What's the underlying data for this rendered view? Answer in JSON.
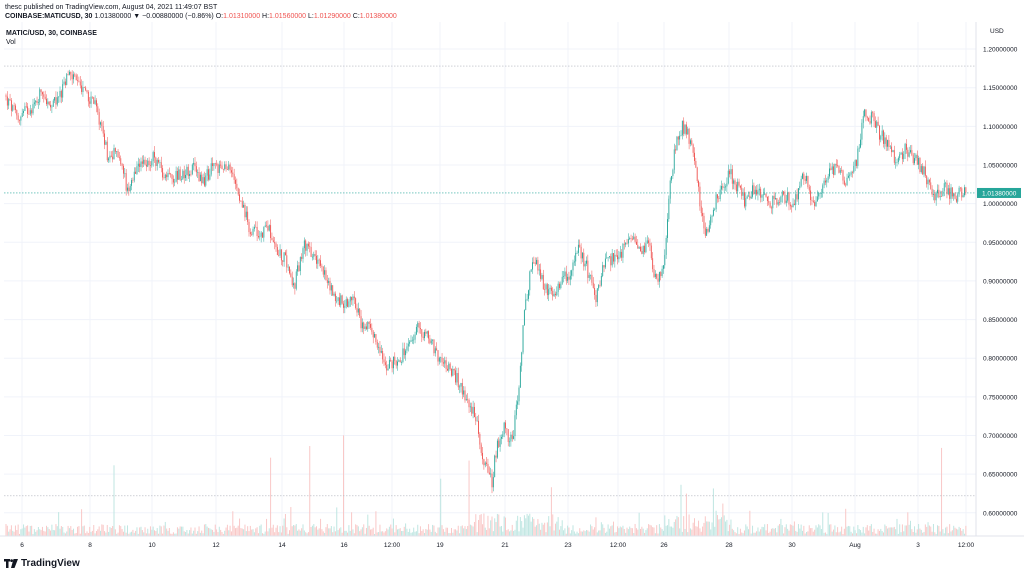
{
  "header": {
    "publisher_line": "thesc published on TradingView.com, August 04, 2021 11:49:07 BST",
    "symbol": "COINBASE:MATICUSD, 30",
    "change": "1.01380000 ▼ −0.00880000 (−0.86%)",
    "ohlc": [
      {
        "k": "O:",
        "v": "1.01310000"
      },
      {
        "k": "H:",
        "v": "1.01560000"
      },
      {
        "k": "L:",
        "v": "1.01290000"
      },
      {
        "k": "C:",
        "v": "1.01380000"
      }
    ]
  },
  "colors": {
    "up": "#26a69a",
    "down": "#ef5350",
    "vol_up": "#bfe6e2",
    "vol_down": "#f9c8c7",
    "grid": "#f0f3fa",
    "axis_text": "#131722",
    "last_price_bg": "#26a69a"
  },
  "chart_data": {
    "type": "candlestick",
    "pane_title": "MATIC/USD, 30, COINBASE",
    "volume_label": "Vol",
    "currency": "USD",
    "ylim": [
      0.57,
      1.235
    ],
    "y_ticks": [
      "1.20000000",
      "1.15000000",
      "1.10000000",
      "1.05000000",
      "1.00000000",
      "0.95000000",
      "0.90000000",
      "0.85000000",
      "0.80000000",
      "0.75000000",
      "0.70000000",
      "0.65000000",
      "0.60000000"
    ],
    "x_ticks": [
      "6",
      "8",
      "10",
      "12",
      "14",
      "16",
      "12:00",
      "19",
      "21",
      "23",
      "12:00",
      "26",
      "28",
      "30",
      "Aug",
      "3",
      "12:00"
    ],
    "range_high_line": 1.178,
    "range_low_line": 0.622,
    "last_price": 1.0138,
    "last_price_label": "1.01380000",
    "close_path": [
      [
        0,
        1.14
      ],
      [
        14,
        1.11
      ],
      [
        22,
        1.12
      ],
      [
        32,
        1.13
      ],
      [
        38,
        1.15
      ],
      [
        46,
        1.12
      ],
      [
        56,
        1.14
      ],
      [
        66,
        1.17
      ],
      [
        78,
        1.15
      ],
      [
        90,
        1.13
      ],
      [
        98,
        1.1
      ],
      [
        104,
        1.06
      ],
      [
        112,
        1.07
      ],
      [
        120,
        1.04
      ],
      [
        124,
        1.01
      ],
      [
        132,
        1.04
      ],
      [
        140,
        1.05
      ],
      [
        150,
        1.06
      ],
      [
        160,
        1.04
      ],
      [
        170,
        1.035
      ],
      [
        180,
        1.04
      ],
      [
        190,
        1.045
      ],
      [
        200,
        1.03
      ],
      [
        210,
        1.05
      ],
      [
        220,
        1.045
      ],
      [
        230,
        1.04
      ],
      [
        238,
        1.0
      ],
      [
        245,
        0.97
      ],
      [
        255,
        0.96
      ],
      [
        265,
        0.97
      ],
      [
        272,
        0.94
      ],
      [
        282,
        0.93
      ],
      [
        290,
        0.89
      ],
      [
        300,
        0.95
      ],
      [
        310,
        0.93
      ],
      [
        320,
        0.91
      ],
      [
        330,
        0.88
      ],
      [
        340,
        0.87
      ],
      [
        350,
        0.88
      ],
      [
        358,
        0.84
      ],
      [
        366,
        0.85
      ],
      [
        374,
        0.81
      ],
      [
        384,
        0.79
      ],
      [
        394,
        0.8
      ],
      [
        404,
        0.81
      ],
      [
        414,
        0.84
      ],
      [
        424,
        0.83
      ],
      [
        434,
        0.8
      ],
      [
        444,
        0.79
      ],
      [
        454,
        0.77
      ],
      [
        462,
        0.75
      ],
      [
        470,
        0.73
      ],
      [
        478,
        0.68
      ],
      [
        484,
        0.65
      ],
      [
        488,
        0.64
      ],
      [
        492,
        0.68
      ],
      [
        500,
        0.71
      ],
      [
        508,
        0.69
      ],
      [
        514,
        0.75
      ],
      [
        520,
        0.85
      ],
      [
        526,
        0.91
      ],
      [
        532,
        0.93
      ],
      [
        540,
        0.89
      ],
      [
        548,
        0.88
      ],
      [
        556,
        0.9
      ],
      [
        566,
        0.91
      ],
      [
        574,
        0.94
      ],
      [
        582,
        0.92
      ],
      [
        592,
        0.88
      ],
      [
        600,
        0.92
      ],
      [
        610,
        0.93
      ],
      [
        620,
        0.94
      ],
      [
        628,
        0.96
      ],
      [
        636,
        0.94
      ],
      [
        644,
        0.95
      ],
      [
        652,
        0.9
      ],
      [
        660,
        0.92
      ],
      [
        666,
        1.02
      ],
      [
        672,
        1.08
      ],
      [
        678,
        1.1
      ],
      [
        684,
        1.09
      ],
      [
        690,
        1.06
      ],
      [
        696,
        1.0
      ],
      [
        702,
        0.96
      ],
      [
        710,
        1.0
      ],
      [
        718,
        1.02
      ],
      [
        726,
        1.04
      ],
      [
        734,
        1.02
      ],
      [
        742,
        1.0
      ],
      [
        750,
        1.02
      ],
      [
        760,
        1.01
      ],
      [
        770,
        1.0
      ],
      [
        780,
        1.01
      ],
      [
        790,
        1.0
      ],
      [
        800,
        1.04
      ],
      [
        808,
        1.0
      ],
      [
        818,
        1.02
      ],
      [
        826,
        1.05
      ],
      [
        834,
        1.04
      ],
      [
        842,
        1.03
      ],
      [
        852,
        1.05
      ],
      [
        860,
        1.12
      ],
      [
        868,
        1.11
      ],
      [
        876,
        1.09
      ],
      [
        884,
        1.08
      ],
      [
        892,
        1.05
      ],
      [
        900,
        1.07
      ],
      [
        910,
        1.06
      ],
      [
        920,
        1.04
      ],
      [
        930,
        1.01
      ],
      [
        940,
        1.02
      ],
      [
        950,
        1.01
      ],
      [
        960,
        1.015
      ],
      [
        966,
        1.0138
      ]
    ]
  }
}
